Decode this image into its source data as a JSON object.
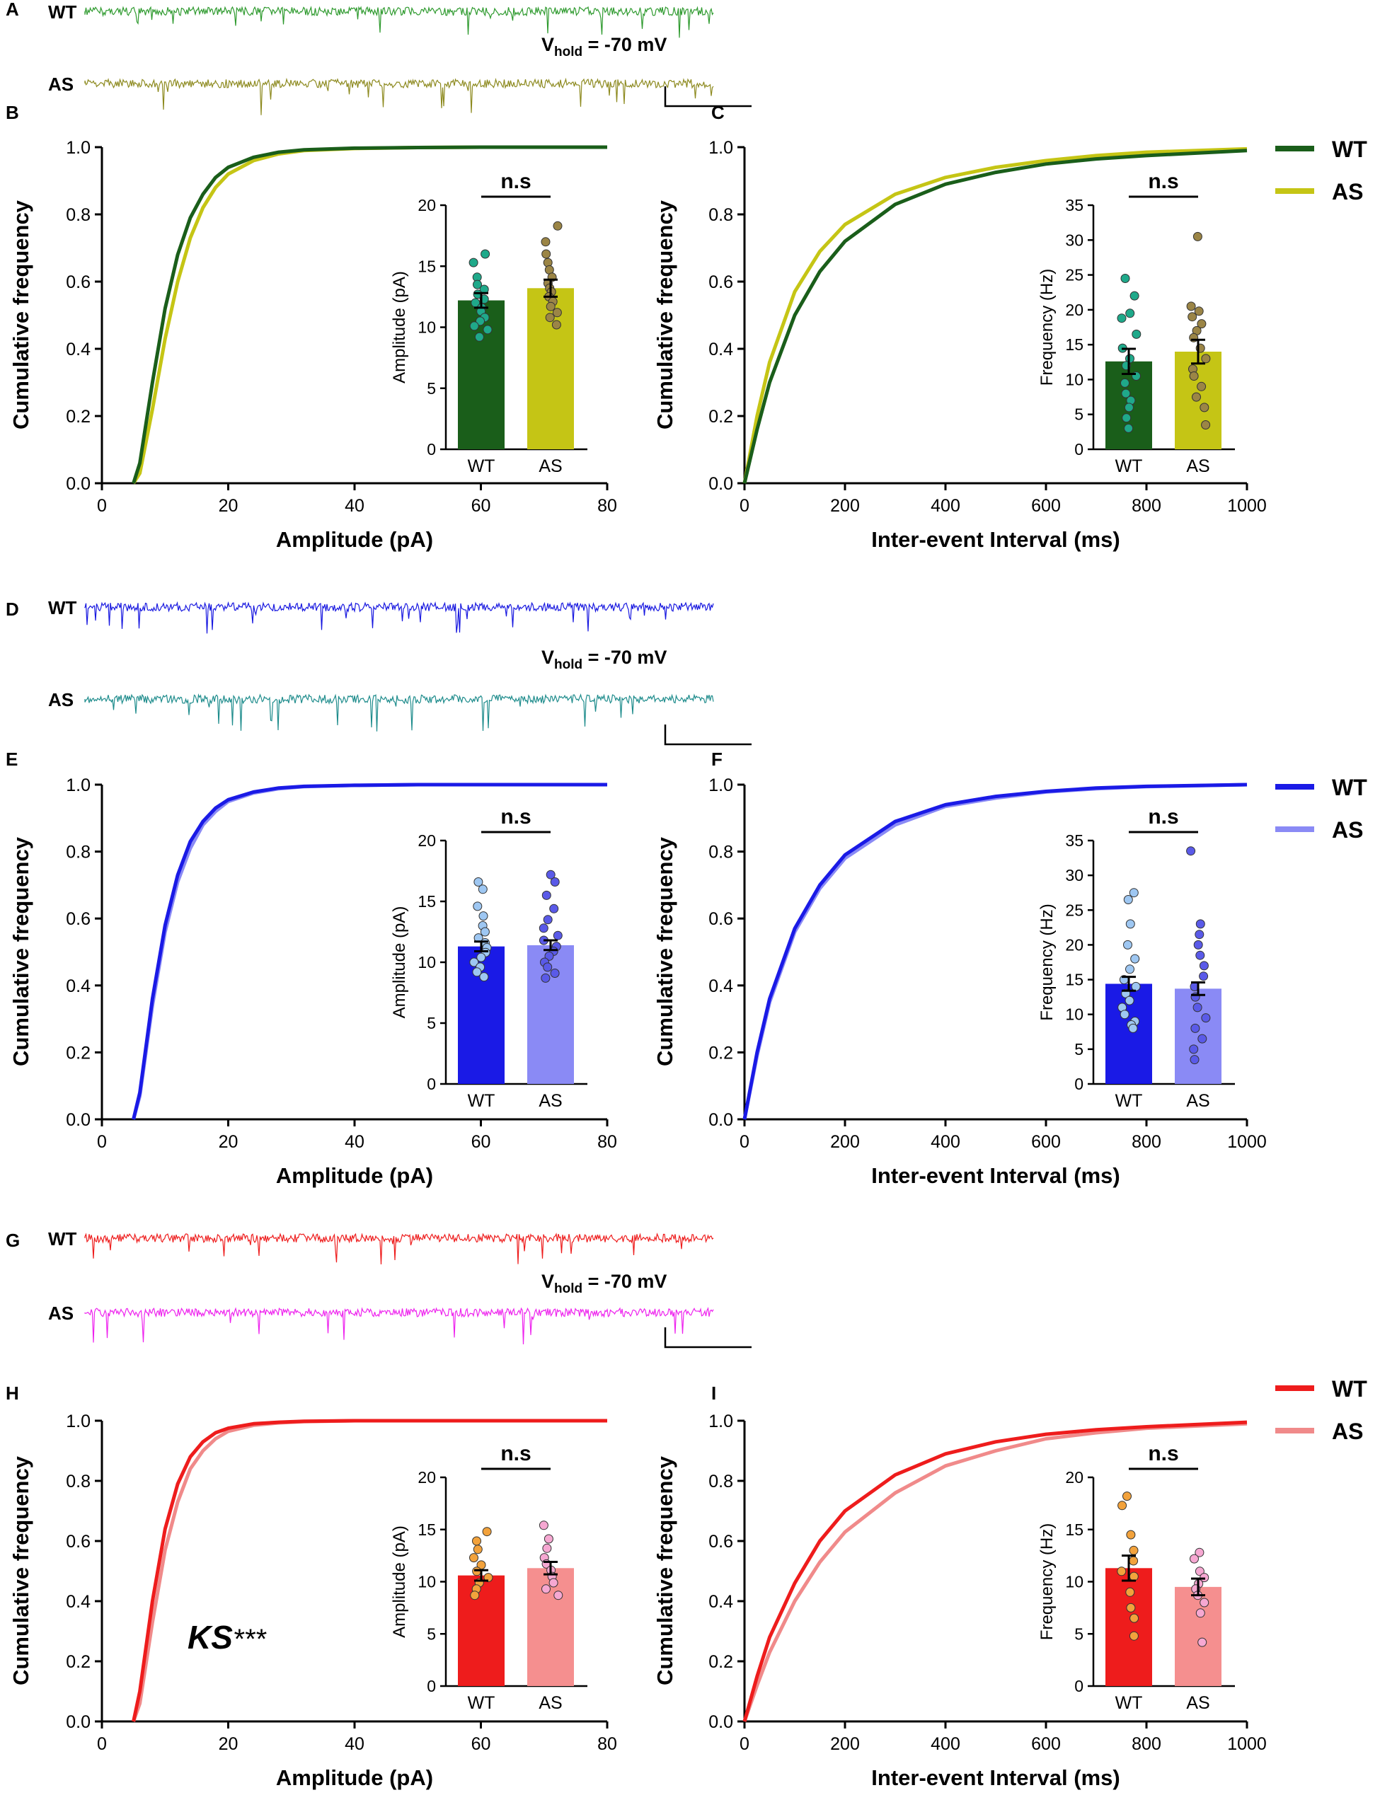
{
  "figure": {
    "panel_letters": [
      "A",
      "B",
      "C",
      "D",
      "E",
      "F",
      "G",
      "H",
      "I"
    ],
    "vhold_main": "V",
    "vhold_sub": "hold",
    "vhold_value": " = -70 mV",
    "ks_label": "KS",
    "ks_stars": "***"
  },
  "chart_data": [
    {
      "panel": "A",
      "type": "line",
      "subtype": "current-trace",
      "traces": [
        {
          "label": "WT",
          "color": "#2e9a2e"
        },
        {
          "label": "AS",
          "color": "#8d8a1f"
        }
      ],
      "annotation": "Vhold = -70 mV"
    },
    {
      "panel": "B",
      "type": "line",
      "xlabel": "Amplitude (pA)",
      "ylabel": "Cumulative frequency",
      "xlim": [
        0,
        80
      ],
      "ylim": [
        0,
        1
      ],
      "xticks": [
        0,
        20,
        40,
        60,
        80
      ],
      "yticks": [
        0.0,
        0.2,
        0.4,
        0.6,
        0.8,
        1.0
      ],
      "series": [
        {
          "name": "WT",
          "color": "#1a5e1a",
          "x": [
            5,
            6,
            8,
            10,
            12,
            14,
            16,
            18,
            20,
            24,
            28,
            32,
            40,
            50,
            60,
            80
          ],
          "y": [
            0,
            0.06,
            0.3,
            0.52,
            0.68,
            0.79,
            0.86,
            0.91,
            0.94,
            0.97,
            0.985,
            0.992,
            0.997,
            0.999,
            1,
            1
          ]
        },
        {
          "name": "AS",
          "color": "#c5c515",
          "x": [
            5,
            6,
            8,
            10,
            12,
            14,
            16,
            18,
            20,
            24,
            28,
            32,
            40,
            50,
            60,
            80
          ],
          "y": [
            0,
            0.03,
            0.22,
            0.43,
            0.6,
            0.73,
            0.82,
            0.88,
            0.92,
            0.96,
            0.98,
            0.99,
            0.996,
            0.999,
            1,
            1
          ]
        }
      ],
      "inset": {
        "type": "bar",
        "ylabel": "Amplitude (pA)",
        "ylim": [
          0,
          20
        ],
        "yticks": [
          0,
          5,
          10,
          15,
          20
        ],
        "categories": [
          "WT",
          "AS"
        ],
        "values": [
          12.2,
          13.2
        ],
        "errors": [
          0.6,
          0.7
        ],
        "bar_colors": [
          "#1a5e1a",
          "#c5c515"
        ],
        "dot_colors": [
          "#1fa98a",
          "#9b8546"
        ],
        "points": [
          [
            16,
            15.3,
            14.1,
            13.5,
            13.1,
            12.7,
            12.3,
            12.0,
            11.6,
            11.3,
            10.8,
            10.5,
            10.1,
            9.8,
            9.2
          ],
          [
            18.3,
            17.0,
            16.0,
            15.3,
            14.7,
            14.1,
            13.6,
            13.2,
            12.9,
            12.5,
            12.1,
            11.7,
            11.2,
            10.8,
            10.2
          ]
        ],
        "significance": "n.s"
      }
    },
    {
      "panel": "C",
      "type": "line",
      "xlabel": "Inter-event Interval (ms)",
      "ylabel": "Cumulative frequency",
      "xlim": [
        0,
        1000
      ],
      "ylim": [
        0,
        1
      ],
      "xticks": [
        0,
        200,
        400,
        600,
        800,
        1000
      ],
      "yticks": [
        0.0,
        0.2,
        0.4,
        0.6,
        0.8,
        1.0
      ],
      "series": [
        {
          "name": "WT",
          "color": "#1a5e1a",
          "x": [
            0,
            25,
            50,
            100,
            150,
            200,
            300,
            400,
            500,
            600,
            700,
            800,
            1000
          ],
          "y": [
            0,
            0.16,
            0.3,
            0.5,
            0.63,
            0.72,
            0.83,
            0.89,
            0.925,
            0.95,
            0.965,
            0.975,
            0.99
          ]
        },
        {
          "name": "AS",
          "color": "#c5c515",
          "x": [
            0,
            25,
            50,
            100,
            150,
            200,
            300,
            400,
            500,
            600,
            700,
            800,
            1000
          ],
          "y": [
            0,
            0.2,
            0.36,
            0.57,
            0.69,
            0.77,
            0.86,
            0.91,
            0.94,
            0.96,
            0.975,
            0.985,
            0.995
          ]
        }
      ],
      "legend": [
        {
          "label": "WT",
          "color": "#1a5e1a"
        },
        {
          "label": "AS",
          "color": "#c5c515"
        }
      ],
      "inset": {
        "type": "bar",
        "ylabel": "Frequency (Hz)",
        "ylim": [
          0,
          35
        ],
        "yticks": [
          0,
          5,
          10,
          15,
          20,
          25,
          30,
          35
        ],
        "categories": [
          "WT",
          "AS"
        ],
        "values": [
          12.6,
          14.0
        ],
        "errors": [
          1.8,
          1.7
        ],
        "bar_colors": [
          "#1a5e1a",
          "#c5c515"
        ],
        "dot_colors": [
          "#1fa98a",
          "#9b8546"
        ],
        "points": [
          [
            24.5,
            22.0,
            19.5,
            18.8,
            16.5,
            14.5,
            13.0,
            12.0,
            10.5,
            9.5,
            8.0,
            7.0,
            6.0,
            4.5,
            3.0
          ],
          [
            30.5,
            20.5,
            19.8,
            19.0,
            18.0,
            17.0,
            16.0,
            14.5,
            13.0,
            11.5,
            10.5,
            9.0,
            7.5,
            6.0,
            3.5
          ]
        ],
        "significance": "n.s"
      }
    },
    {
      "panel": "D",
      "type": "line",
      "subtype": "current-trace",
      "traces": [
        {
          "label": "WT",
          "color": "#1818e0"
        },
        {
          "label": "AS",
          "color": "#1e8c8c"
        }
      ],
      "annotation": "Vhold = -70 mV"
    },
    {
      "panel": "E",
      "type": "line",
      "xlabel": "Amplitude (pA)",
      "ylabel": "Cumulative frequency",
      "xlim": [
        0,
        80
      ],
      "ylim": [
        0,
        1
      ],
      "xticks": [
        0,
        20,
        40,
        60,
        80
      ],
      "yticks": [
        0.0,
        0.2,
        0.4,
        0.6,
        0.8,
        1.0
      ],
      "series": [
        {
          "name": "WT",
          "color": "#1a1ae6",
          "x": [
            5,
            6,
            8,
            10,
            12,
            14,
            16,
            18,
            20,
            24,
            28,
            32,
            40,
            50,
            60,
            80
          ],
          "y": [
            0,
            0.08,
            0.36,
            0.58,
            0.73,
            0.83,
            0.89,
            0.93,
            0.955,
            0.978,
            0.99,
            0.995,
            0.998,
            1,
            1,
            1
          ]
        },
        {
          "name": "AS",
          "color": "#8a8af5",
          "x": [
            5,
            6,
            8,
            10,
            12,
            14,
            16,
            18,
            20,
            24,
            28,
            32,
            40,
            50,
            60,
            80
          ],
          "y": [
            0,
            0.07,
            0.34,
            0.56,
            0.71,
            0.81,
            0.88,
            0.92,
            0.95,
            0.975,
            0.988,
            0.994,
            0.998,
            1,
            1,
            1
          ]
        }
      ],
      "inset": {
        "type": "bar",
        "ylabel": "Amplitude (pA)",
        "ylim": [
          0,
          20
        ],
        "yticks": [
          0,
          5,
          10,
          15,
          20
        ],
        "categories": [
          "WT",
          "AS"
        ],
        "values": [
          11.3,
          11.4
        ],
        "errors": [
          0.4,
          0.4
        ],
        "bar_colors": [
          "#1a1ae6",
          "#8a8af5"
        ],
        "dot_colors": [
          "#9ec7f2",
          "#5a5ae8"
        ],
        "points": [
          [
            16.6,
            16.0,
            14.6,
            13.8,
            13.0,
            12.5,
            12.0,
            11.6,
            11.2,
            10.8,
            10.4,
            10.0,
            9.6,
            9.2,
            8.8
          ],
          [
            17.2,
            16.6,
            15.5,
            14.4,
            13.5,
            12.8,
            12.2,
            11.8,
            11.3,
            10.9,
            10.5,
            10.0,
            9.6,
            9.1,
            8.7
          ]
        ],
        "significance": "n.s"
      }
    },
    {
      "panel": "F",
      "type": "line",
      "xlabel": "Inter-event Interval (ms)",
      "ylabel": "Cumulative frequency",
      "xlim": [
        0,
        1000
      ],
      "ylim": [
        0,
        1
      ],
      "xticks": [
        0,
        200,
        400,
        600,
        800,
        1000
      ],
      "yticks": [
        0.0,
        0.2,
        0.4,
        0.6,
        0.8,
        1.0
      ],
      "series": [
        {
          "name": "WT",
          "color": "#1a1ae6",
          "x": [
            0,
            25,
            50,
            100,
            150,
            200,
            300,
            400,
            500,
            600,
            700,
            800,
            1000
          ],
          "y": [
            0,
            0.2,
            0.36,
            0.57,
            0.7,
            0.79,
            0.89,
            0.94,
            0.965,
            0.98,
            0.99,
            0.995,
            1
          ]
        },
        {
          "name": "AS",
          "color": "#8a8af5",
          "x": [
            0,
            25,
            50,
            100,
            150,
            200,
            300,
            400,
            500,
            600,
            700,
            800,
            1000
          ],
          "y": [
            0,
            0.19,
            0.35,
            0.56,
            0.69,
            0.78,
            0.88,
            0.935,
            0.96,
            0.978,
            0.988,
            0.994,
            1
          ]
        }
      ],
      "legend": [
        {
          "label": "WT",
          "color": "#1a1ae6"
        },
        {
          "label": "AS",
          "color": "#8a8af5"
        }
      ],
      "inset": {
        "type": "bar",
        "ylabel": "Frequency (Hz)",
        "ylim": [
          0,
          35
        ],
        "yticks": [
          0,
          5,
          10,
          15,
          20,
          25,
          30,
          35
        ],
        "categories": [
          "WT",
          "AS"
        ],
        "values": [
          14.4,
          13.7
        ],
        "errors": [
          1.0,
          0.9
        ],
        "bar_colors": [
          "#1a1ae6",
          "#8a8af5"
        ],
        "dot_colors": [
          "#9ec7f2",
          "#5a5ae8"
        ],
        "points": [
          [
            27.5,
            26.5,
            23.0,
            20.0,
            18.0,
            16.5,
            15.0,
            14.0,
            13.0,
            12.0,
            11.0,
            10.0,
            9.0,
            8.5,
            8.0
          ],
          [
            33.5,
            23.0,
            21.5,
            20.0,
            18.5,
            17.0,
            15.5,
            14.0,
            12.5,
            11.0,
            9.5,
            8.0,
            6.5,
            5.0,
            3.5
          ]
        ],
        "significance": "n.s"
      }
    },
    {
      "panel": "G",
      "type": "line",
      "subtype": "current-trace",
      "traces": [
        {
          "label": "WT",
          "color": "#ee1c1c"
        },
        {
          "label": "AS",
          "color": "#ee22ee"
        }
      ],
      "annotation": "Vhold = -70 mV"
    },
    {
      "panel": "H",
      "type": "line",
      "xlabel": "Amplitude (pA)",
      "ylabel": "Cumulative frequency",
      "xlim": [
        0,
        80
      ],
      "ylim": [
        0,
        1
      ],
      "xticks": [
        0,
        20,
        40,
        60,
        80
      ],
      "yticks": [
        0.0,
        0.2,
        0.4,
        0.6,
        0.8,
        1.0
      ],
      "series": [
        {
          "name": "WT",
          "color": "#ee1c1c",
          "x": [
            5,
            6,
            8,
            10,
            12,
            14,
            16,
            18,
            20,
            24,
            28,
            32,
            40,
            50,
            60,
            80
          ],
          "y": [
            0,
            0.1,
            0.4,
            0.64,
            0.79,
            0.88,
            0.93,
            0.96,
            0.975,
            0.99,
            0.995,
            0.998,
            1,
            1,
            1,
            1
          ]
        },
        {
          "name": "AS",
          "color": "#f08a8a",
          "x": [
            5,
            6,
            8,
            10,
            12,
            14,
            16,
            18,
            20,
            24,
            28,
            32,
            40,
            50,
            60,
            80
          ],
          "y": [
            0,
            0.06,
            0.33,
            0.57,
            0.73,
            0.84,
            0.9,
            0.94,
            0.965,
            0.985,
            0.993,
            0.997,
            1,
            1,
            1,
            1
          ]
        }
      ],
      "annotation": "KS***",
      "inset": {
        "type": "bar",
        "ylabel": "Amplitude (pA)",
        "ylim": [
          0,
          20
        ],
        "yticks": [
          0,
          5,
          10,
          15,
          20
        ],
        "categories": [
          "WT",
          "AS"
        ],
        "values": [
          10.6,
          11.3
        ],
        "errors": [
          0.5,
          0.6
        ],
        "bar_colors": [
          "#ee1c1c",
          "#f58f8f"
        ],
        "dot_colors": [
          "#f2a23c",
          "#f6a8d2"
        ],
        "points": [
          [
            14.8,
            13.9,
            13.1,
            12.3,
            11.6,
            11.0,
            10.4,
            9.9,
            9.3,
            8.7
          ],
          [
            15.4,
            14.1,
            13.2,
            12.3,
            11.7,
            11.1,
            10.5,
            9.9,
            9.3,
            8.7
          ]
        ],
        "significance": "n.s"
      }
    },
    {
      "panel": "I",
      "type": "line",
      "xlabel": "Inter-event Interval (ms)",
      "ylabel": "Cumulative frequency",
      "xlim": [
        0,
        1000
      ],
      "ylim": [
        0,
        1
      ],
      "xticks": [
        0,
        200,
        400,
        600,
        800,
        1000
      ],
      "yticks": [
        0.0,
        0.2,
        0.4,
        0.6,
        0.8,
        1.0
      ],
      "series": [
        {
          "name": "WT",
          "color": "#ee1c1c",
          "x": [
            0,
            25,
            50,
            100,
            150,
            200,
            300,
            400,
            500,
            600,
            700,
            800,
            1000
          ],
          "y": [
            0,
            0.15,
            0.28,
            0.46,
            0.6,
            0.7,
            0.82,
            0.89,
            0.93,
            0.955,
            0.97,
            0.98,
            0.995
          ]
        },
        {
          "name": "AS",
          "color": "#f08a8a",
          "x": [
            0,
            25,
            50,
            100,
            150,
            200,
            300,
            400,
            500,
            600,
            700,
            800,
            1000
          ],
          "y": [
            0,
            0.12,
            0.23,
            0.4,
            0.53,
            0.63,
            0.76,
            0.85,
            0.9,
            0.94,
            0.96,
            0.975,
            0.99
          ]
        }
      ],
      "legend": [
        {
          "label": "WT",
          "color": "#ee1c1c"
        },
        {
          "label": "AS",
          "color": "#f08a8a"
        }
      ],
      "inset": {
        "type": "bar",
        "ylabel": "Frequency (Hz)",
        "ylim": [
          0,
          20
        ],
        "yticks": [
          0,
          5,
          10,
          15,
          20
        ],
        "categories": [
          "WT",
          "AS"
        ],
        "values": [
          11.3,
          9.5
        ],
        "errors": [
          1.2,
          0.8
        ],
        "bar_colors": [
          "#ee1c1c",
          "#f58f8f"
        ],
        "dot_colors": [
          "#f2a23c",
          "#f6a8d2"
        ],
        "points": [
          [
            18.2,
            17.3,
            14.5,
            13.0,
            12.0,
            11.0,
            10.5,
            9.0,
            7.5,
            6.5,
            4.8
          ],
          [
            12.8,
            12.2,
            11.0,
            10.4,
            9.8,
            9.3,
            8.7,
            8.0,
            7.0,
            4.2
          ]
        ],
        "significance": "n.s"
      }
    }
  ]
}
